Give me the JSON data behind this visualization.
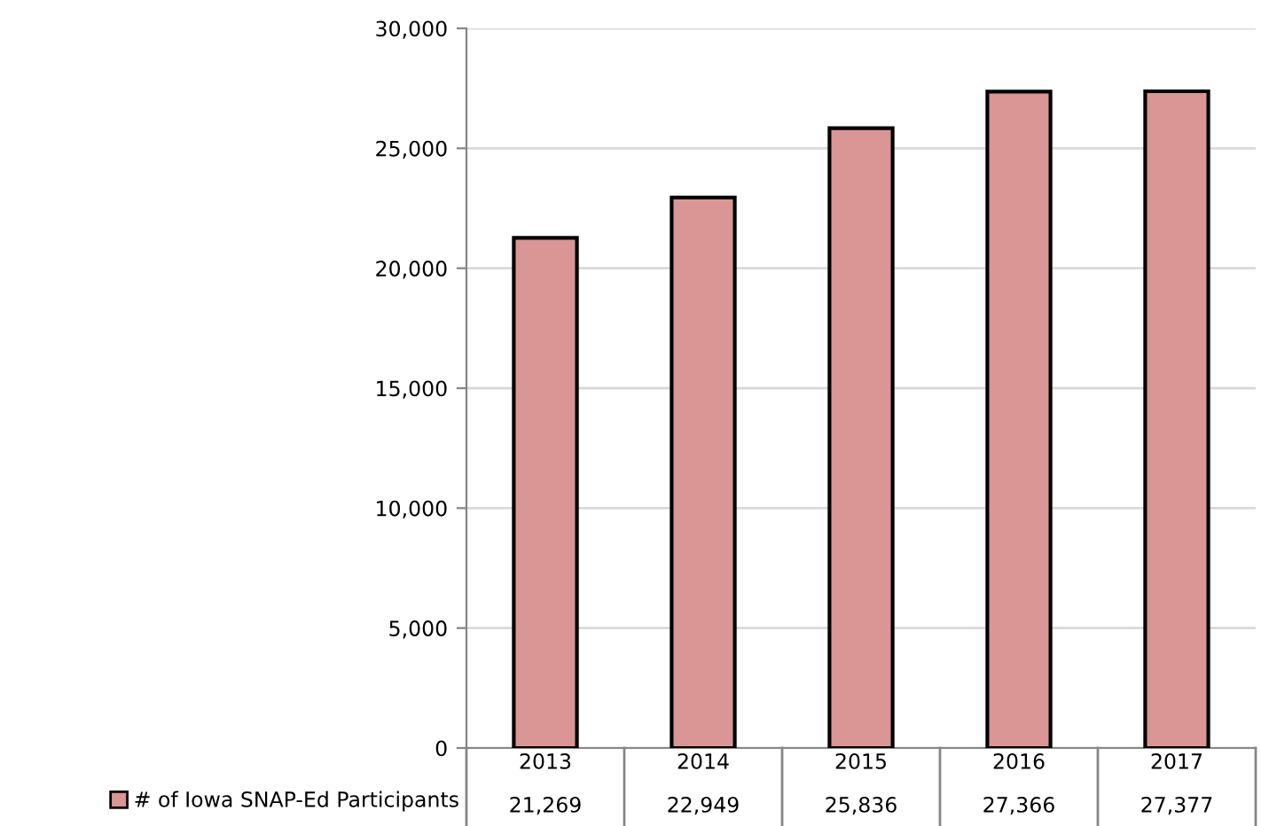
{
  "chart_data": {
    "type": "bar",
    "categories": [
      "2013",
      "2014",
      "2015",
      "2016",
      "2017"
    ],
    "series": [
      {
        "name": "# of Iowa SNAP-Ed Participants",
        "color": "#d99694",
        "values": [
          21269,
          22949,
          25836,
          27366,
          27377
        ]
      }
    ],
    "value_labels": [
      "21,269",
      "22,949",
      "25,836",
      "27,366",
      "27,377"
    ],
    "ylim": [
      0,
      30000
    ],
    "yticks": [
      {
        "value": 0,
        "label": "0"
      },
      {
        "value": 5000,
        "label": "5,000"
      },
      {
        "value": 10000,
        "label": "10,000"
      },
      {
        "value": 15000,
        "label": "15,000"
      },
      {
        "value": 20000,
        "label": "20,000"
      },
      {
        "value": 25000,
        "label": "25,000"
      },
      {
        "value": 30000,
        "label": "30,000"
      }
    ],
    "grid": "y",
    "legend": "bottom left"
  }
}
